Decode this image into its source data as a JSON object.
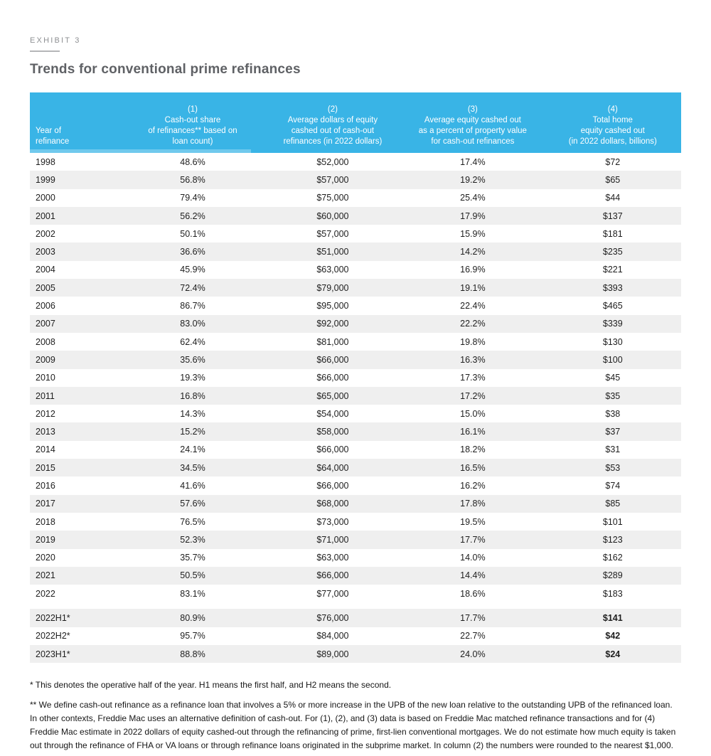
{
  "exhibit_label": "EXHIBIT 3",
  "title": "Trends for conventional prime refinances",
  "colors": {
    "header_bg": "#39b4e6",
    "row_alt_bg": "#efefef",
    "header_text": "#ffffff",
    "body_text": "#1e1e1e",
    "title_text": "#5f6165",
    "label_text": "#8e9093"
  },
  "table": {
    "header": {
      "year": [
        "Year of",
        "refinance"
      ],
      "col1": [
        "(1)",
        "Cash-out share",
        "of refinances** based on",
        "loan count)"
      ],
      "col2": [
        "(2)",
        "Average dollars of equity",
        "cashed out of cash-out",
        "refinances (in 2022 dollars)"
      ],
      "col3": [
        "(3)",
        "Average equity cashed out",
        "as a percent of property value",
        "for cash-out refinances"
      ],
      "col4": [
        "(4)",
        "Total home",
        "equity cashed out",
        "(in 2022 dollars, billions)"
      ]
    },
    "rows": [
      {
        "year": "1998",
        "c1": "48.6%",
        "c2": "$52,000",
        "c3": "17.4%",
        "c4": "$72"
      },
      {
        "year": "1999",
        "c1": "56.8%",
        "c2": "$57,000",
        "c3": "19.2%",
        "c4": "$65"
      },
      {
        "year": "2000",
        "c1": "79.4%",
        "c2": "$75,000",
        "c3": "25.4%",
        "c4": "$44"
      },
      {
        "year": "2001",
        "c1": "56.2%",
        "c2": "$60,000",
        "c3": "17.9%",
        "c4": "$137"
      },
      {
        "year": "2002",
        "c1": "50.1%",
        "c2": "$57,000",
        "c3": "15.9%",
        "c4": "$181"
      },
      {
        "year": "2003",
        "c1": "36.6%",
        "c2": "$51,000",
        "c3": "14.2%",
        "c4": "$235"
      },
      {
        "year": "2004",
        "c1": "45.9%",
        "c2": "$63,000",
        "c3": "16.9%",
        "c4": "$221"
      },
      {
        "year": "2005",
        "c1": "72.4%",
        "c2": "$79,000",
        "c3": "19.1%",
        "c4": "$393"
      },
      {
        "year": "2006",
        "c1": "86.7%",
        "c2": "$95,000",
        "c3": "22.4%",
        "c4": "$465"
      },
      {
        "year": "2007",
        "c1": "83.0%",
        "c2": "$92,000",
        "c3": "22.2%",
        "c4": "$339"
      },
      {
        "year": "2008",
        "c1": "62.4%",
        "c2": "$81,000",
        "c3": "19.8%",
        "c4": "$130"
      },
      {
        "year": "2009",
        "c1": "35.6%",
        "c2": "$66,000",
        "c3": "16.3%",
        "c4": "$100"
      },
      {
        "year": "2010",
        "c1": "19.3%",
        "c2": "$66,000",
        "c3": "17.3%",
        "c4": "$45"
      },
      {
        "year": "2011",
        "c1": "16.8%",
        "c2": "$65,000",
        "c3": "17.2%",
        "c4": "$35"
      },
      {
        "year": "2012",
        "c1": "14.3%",
        "c2": "$54,000",
        "c3": "15.0%",
        "c4": "$38"
      },
      {
        "year": "2013",
        "c1": "15.2%",
        "c2": "$58,000",
        "c3": "16.1%",
        "c4": "$37"
      },
      {
        "year": "2014",
        "c1": "24.1%",
        "c2": "$66,000",
        "c3": "18.2%",
        "c4": "$31"
      },
      {
        "year": "2015",
        "c1": "34.5%",
        "c2": "$64,000",
        "c3": "16.5%",
        "c4": "$53"
      },
      {
        "year": "2016",
        "c1": "41.6%",
        "c2": "$66,000",
        "c3": "16.2%",
        "c4": "$74"
      },
      {
        "year": "2017",
        "c1": "57.6%",
        "c2": "$68,000",
        "c3": "17.8%",
        "c4": "$85"
      },
      {
        "year": "2018",
        "c1": "76.5%",
        "c2": "$73,000",
        "c3": "19.5%",
        "c4": "$101"
      },
      {
        "year": "2019",
        "c1": "52.3%",
        "c2": "$71,000",
        "c3": "17.7%",
        "c4": "$123"
      },
      {
        "year": "2020",
        "c1": "35.7%",
        "c2": "$63,000",
        "c3": "14.0%",
        "c4": "$162"
      },
      {
        "year": "2021",
        "c1": "50.5%",
        "c2": "$66,000",
        "c3": "14.4%",
        "c4": "$289"
      },
      {
        "year": "2022",
        "c1": "83.1%",
        "c2": "$77,000",
        "c3": "18.6%",
        "c4": "$183"
      }
    ],
    "half_year_rows": [
      {
        "year": "2022H1*",
        "c1": "80.9%",
        "c2": "$76,000",
        "c3": "17.7%",
        "c4": "$141",
        "bold_c4": true
      },
      {
        "year": "2022H2*",
        "c1": "95.7%",
        "c2": "$84,000",
        "c3": "22.7%",
        "c4": "$42",
        "bold_c4": true
      },
      {
        "year": "2023H1*",
        "c1": "88.8%",
        "c2": "$89,000",
        "c3": "24.0%",
        "c4": "$24",
        "bold_c4": true
      }
    ]
  },
  "footnotes": [
    "* This denotes the operative half of the year. H1 means the first half, and H2 means the second.",
    "** We define cash-out refinance as a refinance loan that involves a 5% or more increase in the UPB of the new loan relative to the outstanding UPB of the refinanced loan. In other contexts, Freddie Mac uses an alternative definition of cash-out. For (1), (2), and (3) data is based on Freddie Mac matched refinance transactions and for (4) Freddie Mac estimate in 2022 dollars of equity cashed-out through the refinancing of prime, first-lien conventional mortgages. We do not estimate how much equity is taken out through the refinance of FHA or VA loans or through refinance loans originated in the subprime market. In column (2) the numbers were rounded to the nearest $1,000."
  ]
}
